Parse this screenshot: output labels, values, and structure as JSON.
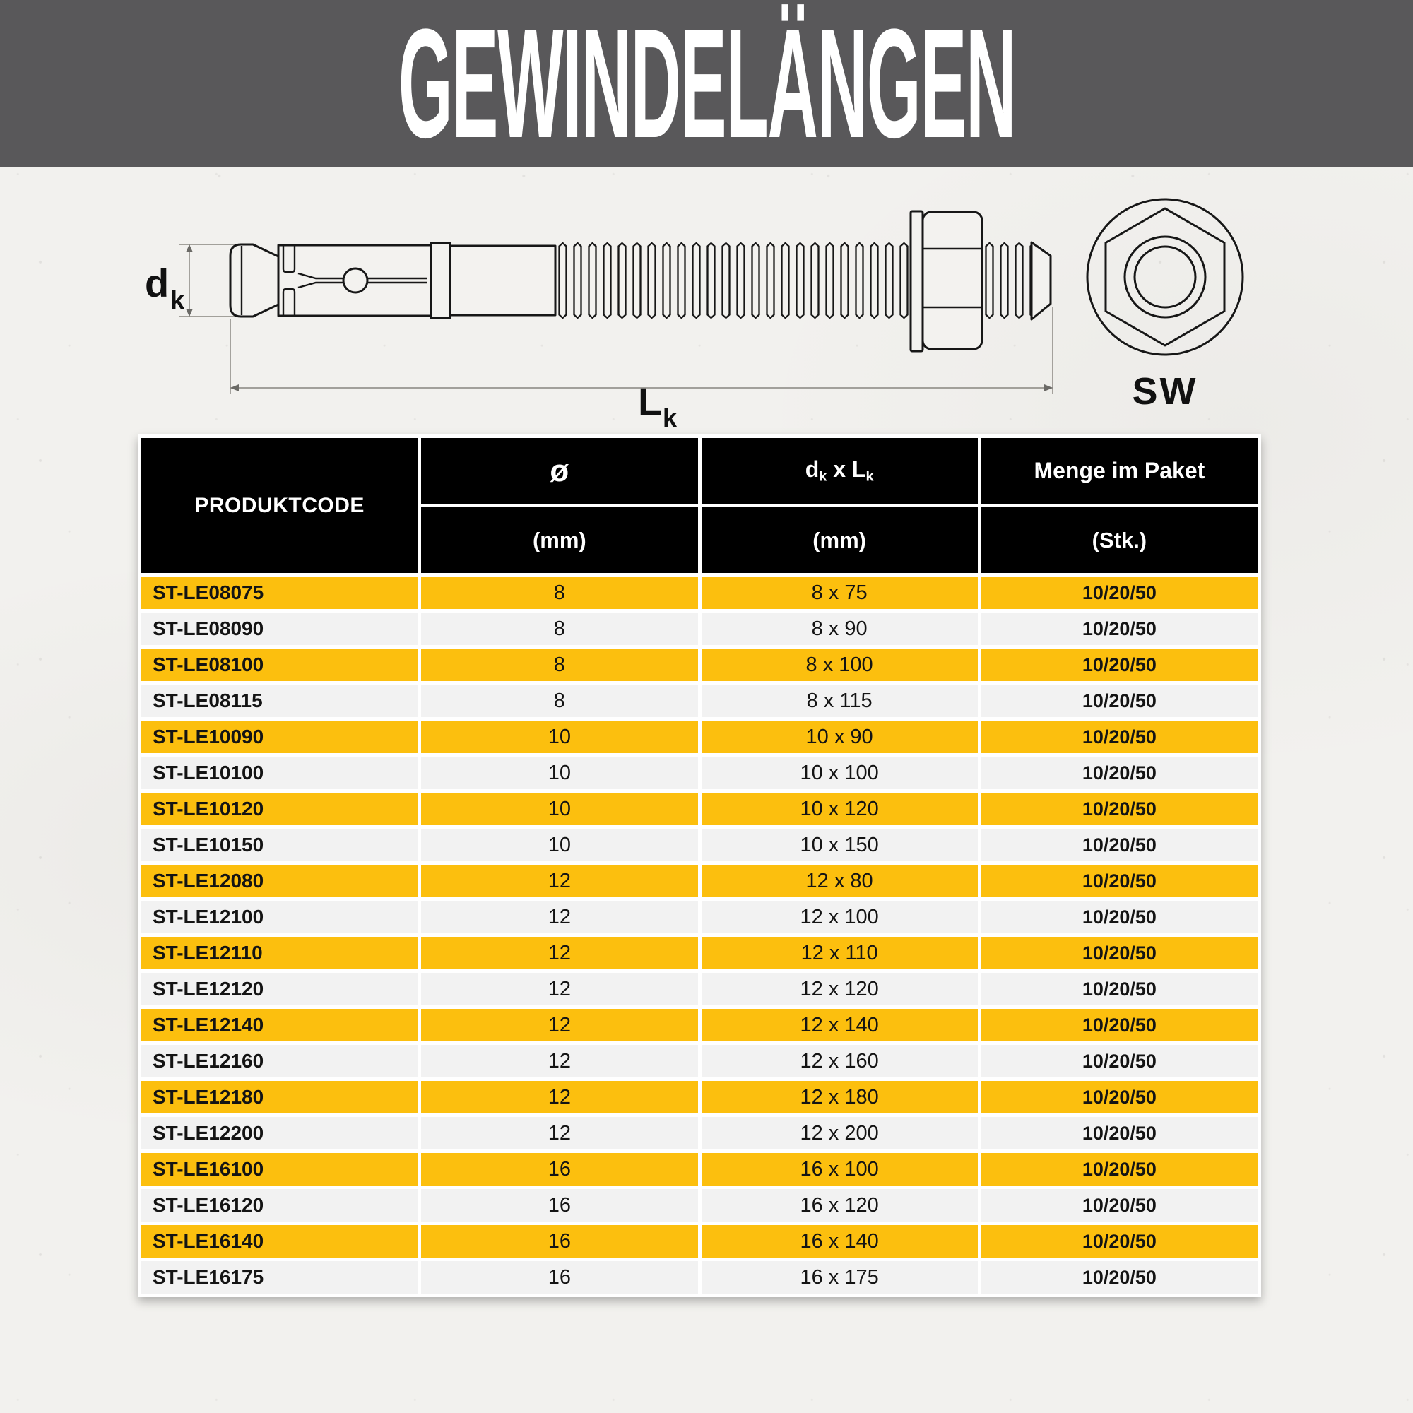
{
  "title": "GEWINDELÄNGEN",
  "colors": {
    "band_gray": "#59585a",
    "accent_yellow": "#fcbf0e",
    "row_light": "#f2f2f2",
    "header_black": "#000000"
  },
  "diagram": {
    "dk_main": "d",
    "dk_sub": "k",
    "lk_main": "L",
    "lk_sub": "k",
    "sw_label": "SW"
  },
  "table": {
    "header": {
      "produktcode": "PRODUKTCODE",
      "dia_symbol": "ø",
      "dia_unit": "(mm)",
      "dim_d": "d",
      "dim_d_sub": "k",
      "dim_x": " x ",
      "dim_l": "L",
      "dim_l_sub": "k",
      "dim_unit": "(mm)",
      "qty_label": "Menge im Paket",
      "qty_unit": "(Stk.)"
    },
    "rows": [
      {
        "code": "ST-LE08075",
        "dia": "8",
        "dim": "8 x 75",
        "qty": "10/20/50"
      },
      {
        "code": "ST-LE08090",
        "dia": "8",
        "dim": "8 x 90",
        "qty": "10/20/50"
      },
      {
        "code": "ST-LE08100",
        "dia": "8",
        "dim": "8 x 100",
        "qty": "10/20/50"
      },
      {
        "code": "ST-LE08115",
        "dia": "8",
        "dim": "8 x 115",
        "qty": "10/20/50"
      },
      {
        "code": "ST-LE10090",
        "dia": "10",
        "dim": "10 x 90",
        "qty": "10/20/50"
      },
      {
        "code": "ST-LE10100",
        "dia": "10",
        "dim": "10 x 100",
        "qty": "10/20/50"
      },
      {
        "code": "ST-LE10120",
        "dia": "10",
        "dim": "10 x 120",
        "qty": "10/20/50"
      },
      {
        "code": "ST-LE10150",
        "dia": "10",
        "dim": "10 x 150",
        "qty": "10/20/50"
      },
      {
        "code": "ST-LE12080",
        "dia": "12",
        "dim": "12 x 80",
        "qty": "10/20/50"
      },
      {
        "code": "ST-LE12100",
        "dia": "12",
        "dim": "12 x 100",
        "qty": "10/20/50"
      },
      {
        "code": "ST-LE12110",
        "dia": "12",
        "dim": "12 x 110",
        "qty": "10/20/50"
      },
      {
        "code": "ST-LE12120",
        "dia": "12",
        "dim": "12 x 120",
        "qty": "10/20/50"
      },
      {
        "code": "ST-LE12140",
        "dia": "12",
        "dim": "12 x 140",
        "qty": "10/20/50"
      },
      {
        "code": "ST-LE12160",
        "dia": "12",
        "dim": "12 x 160",
        "qty": "10/20/50"
      },
      {
        "code": "ST-LE12180",
        "dia": "12",
        "dim": "12 x 180",
        "qty": "10/20/50"
      },
      {
        "code": "ST-LE12200",
        "dia": "12",
        "dim": "12 x 200",
        "qty": "10/20/50"
      },
      {
        "code": "ST-LE16100",
        "dia": "16",
        "dim": "16 x 100",
        "qty": "10/20/50"
      },
      {
        "code": "ST-LE16120",
        "dia": "16",
        "dim": "16 x 120",
        "qty": "10/20/50"
      },
      {
        "code": "ST-LE16140",
        "dia": "16",
        "dim": "16 x 140",
        "qty": "10/20/50"
      },
      {
        "code": "ST-LE16175",
        "dia": "16",
        "dim": "16 x 175",
        "qty": "10/20/50"
      }
    ]
  }
}
